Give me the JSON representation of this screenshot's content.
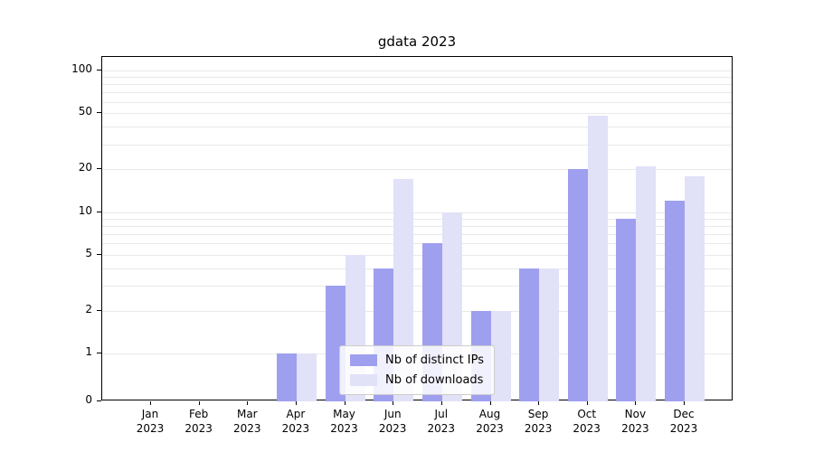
{
  "colors": {
    "distinct_ips": "#9f9fef",
    "downloads": "#e1e1f8",
    "grid": "#e9e9e9",
    "axis": "#000000",
    "legend_border": "#cccccc",
    "background": "#ffffff"
  },
  "chart_data": {
    "type": "bar",
    "title": "gdata 2023",
    "xlabel": "",
    "ylabel": "",
    "yscale": "symlog",
    "ylim": [
      0,
      100
    ],
    "yticks": [
      0,
      1,
      2,
      5,
      10,
      20,
      50,
      100
    ],
    "minor_gridlines": [
      3,
      4,
      6,
      7,
      8,
      9,
      30,
      40,
      60,
      70,
      80,
      90
    ],
    "grid": true,
    "legend_position": "lower center",
    "categories": [
      "Jan 2023",
      "Feb 2023",
      "Mar 2023",
      "Apr 2023",
      "May 2023",
      "Jun 2023",
      "Jul 2023",
      "Aug 2023",
      "Sep 2023",
      "Oct 2023",
      "Nov 2023",
      "Dec 2023"
    ],
    "series": [
      {
        "name": "Nb of distinct IPs",
        "color": "#9f9fef",
        "values": [
          0,
          0,
          0,
          1,
          3,
          4,
          6,
          2,
          4,
          20,
          9,
          12
        ]
      },
      {
        "name": "Nb of downloads",
        "color": "#e1e1f8",
        "values": [
          0,
          0,
          0,
          1,
          5,
          17,
          10,
          2,
          4,
          48,
          21,
          18
        ]
      }
    ]
  }
}
